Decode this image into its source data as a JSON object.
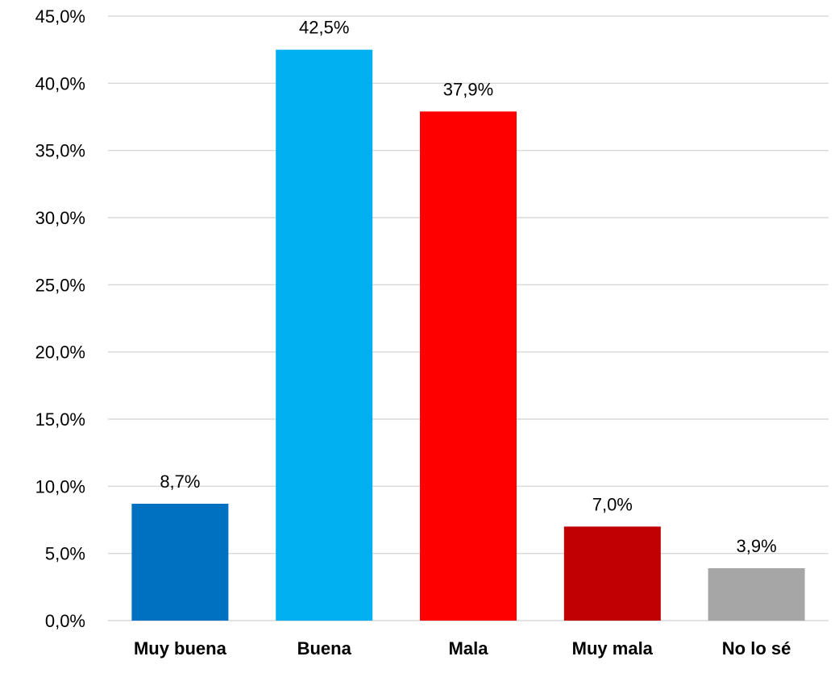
{
  "chart_data": {
    "type": "bar",
    "title": "",
    "xlabel": "",
    "ylabel": "",
    "categories": [
      "Muy buena",
      "Buena",
      "Mala",
      "Muy mala",
      "No lo sé"
    ],
    "values": [
      8.7,
      42.5,
      37.9,
      7.0,
      3.9
    ],
    "data_labels": [
      "8,7%",
      "42,5%",
      "37,9%",
      "7,0%",
      "3,9%"
    ],
    "bar_colors": [
      "#0070C0",
      "#00B0F0",
      "#FF0000",
      "#C00000",
      "#A6A6A6"
    ],
    "ylim": [
      0,
      45
    ],
    "y_ticks": [
      0,
      5,
      10,
      15,
      20,
      25,
      30,
      35,
      40,
      45
    ],
    "y_tick_labels": [
      "0,0%",
      "5,0%",
      "10,0%",
      "15,0%",
      "20,0%",
      "25,0%",
      "30,0%",
      "35,0%",
      "40,0%",
      "45,0%"
    ],
    "grid": true,
    "legend": "none",
    "gridline_color": "#d9d9d9"
  }
}
